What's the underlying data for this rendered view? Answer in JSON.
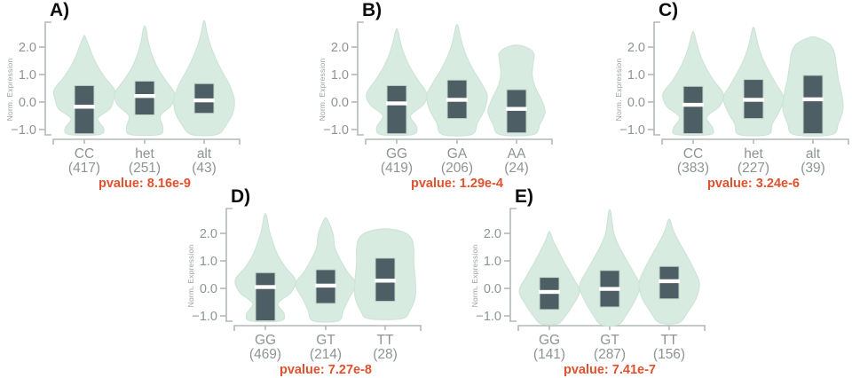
{
  "figure": {
    "background": "#ffffff",
    "y_axis": {
      "label": "Norm. Expression",
      "ticks": [
        "2.0",
        "1.0",
        "0.0",
        "−1.0"
      ],
      "tick_values": [
        2.0,
        1.0,
        0.0,
        -1.0
      ],
      "range": [
        -1.45,
        3.0
      ]
    },
    "colors": {
      "violin_fill": "#d8ebe1",
      "violin_edge": "#cbe2d7",
      "box_fill": "#4e5e65",
      "box_edge": "#c2d7cb",
      "median_line": "#ffffff",
      "axis": "#b3b9b6",
      "tick_text": "#8d9592",
      "axis_title_text": "#9aa29e",
      "pvalue_text": "#e2512d",
      "panel_label": "#0d0d0d"
    }
  },
  "chart_data": [
    {
      "type": "violin",
      "panel": "A)",
      "ylabel": "Norm. Expression",
      "categories": [
        "CC",
        "het",
        "alt"
      ],
      "counts": [
        417,
        251,
        43
      ],
      "pvalue": 8.16e-09,
      "pvalue_label": "pvalue: 8.16e-9",
      "legend": "none",
      "groups": [
        {
          "label": "CC",
          "count_label": "(417)",
          "box": {
            "q1": -1.15,
            "median": -0.17,
            "q3": 0.6
          },
          "density": [
            [
              -1.18,
              0.5
            ],
            [
              -0.95,
              0.64
            ],
            [
              -0.6,
              0.44
            ],
            [
              -0.25,
              0.85
            ],
            [
              0.1,
              0.97
            ],
            [
              0.45,
              1.0
            ],
            [
              0.9,
              0.68
            ],
            [
              1.35,
              0.42
            ],
            [
              1.75,
              0.25
            ],
            [
              2.1,
              0.13
            ],
            [
              2.3,
              0.06
            ]
          ]
        },
        {
          "label": "het",
          "count_label": "(251)",
          "box": {
            "q1": -0.47,
            "median": 0.22,
            "q3": 0.76
          },
          "density": [
            [
              -1.18,
              0.48
            ],
            [
              -0.9,
              0.6
            ],
            [
              -0.5,
              0.52
            ],
            [
              -0.1,
              0.9
            ],
            [
              0.3,
              1.0
            ],
            [
              0.75,
              0.72
            ],
            [
              1.2,
              0.45
            ],
            [
              1.7,
              0.25
            ],
            [
              2.2,
              0.12
            ],
            [
              2.65,
              0.05
            ]
          ]
        },
        {
          "label": "alt",
          "count_label": "(43)",
          "box": {
            "q1": -0.41,
            "median": 0.06,
            "q3": 0.67
          },
          "density": [
            [
              -1.18,
              0.42
            ],
            [
              -0.85,
              0.72
            ],
            [
              -0.4,
              0.95
            ],
            [
              0.1,
              1.0
            ],
            [
              0.6,
              0.85
            ],
            [
              1.1,
              0.6
            ],
            [
              1.6,
              0.38
            ],
            [
              2.1,
              0.2
            ],
            [
              2.6,
              0.08
            ],
            [
              2.85,
              0.04
            ]
          ]
        }
      ]
    },
    {
      "type": "violin",
      "panel": "B)",
      "ylabel": "Norm. Expression",
      "categories": [
        "GG",
        "GA",
        "AA"
      ],
      "counts": [
        419,
        206,
        24
      ],
      "pvalue": 0.000129,
      "pvalue_label": "pvalue: 1.29e-4",
      "legend": "none",
      "groups": [
        {
          "label": "GG",
          "count_label": "(419)",
          "box": {
            "q1": -1.15,
            "median": -0.05,
            "q3": 0.6
          },
          "density": [
            [
              -1.18,
              0.52
            ],
            [
              -0.9,
              0.66
            ],
            [
              -0.5,
              0.46
            ],
            [
              -0.1,
              0.88
            ],
            [
              0.3,
              1.0
            ],
            [
              0.8,
              0.7
            ],
            [
              1.25,
              0.45
            ],
            [
              1.7,
              0.26
            ],
            [
              2.15,
              0.13
            ],
            [
              2.55,
              0.05
            ]
          ]
        },
        {
          "label": "GA",
          "count_label": "(206)",
          "box": {
            "q1": -0.6,
            "median": 0.08,
            "q3": 0.8
          },
          "density": [
            [
              -1.18,
              0.48
            ],
            [
              -0.75,
              0.68
            ],
            [
              -0.25,
              0.92
            ],
            [
              0.25,
              1.0
            ],
            [
              0.7,
              0.8
            ],
            [
              1.2,
              0.52
            ],
            [
              1.7,
              0.3
            ],
            [
              2.2,
              0.15
            ],
            [
              2.7,
              0.05
            ]
          ]
        },
        {
          "label": "AA",
          "count_label": "(24)",
          "box": {
            "q1": -1.12,
            "median": -0.25,
            "q3": 0.45
          },
          "density": [
            [
              -1.18,
              0.55
            ],
            [
              -0.8,
              0.78
            ],
            [
              -0.35,
              0.95
            ],
            [
              0.1,
              0.82
            ],
            [
              0.55,
              0.62
            ],
            [
              1.0,
              0.52
            ],
            [
              1.45,
              0.56
            ],
            [
              1.75,
              0.58
            ],
            [
              1.95,
              0.4
            ]
          ]
        }
      ]
    },
    {
      "type": "violin",
      "panel": "C)",
      "ylabel": "Norm. Expression",
      "categories": [
        "CC",
        "het",
        "alt"
      ],
      "counts": [
        383,
        227,
        39
      ],
      "pvalue": 3.24e-06,
      "pvalue_label": "pvalue: 3.24e-6",
      "legend": "none",
      "groups": [
        {
          "label": "CC",
          "count_label": "(383)",
          "box": {
            "q1": -1.15,
            "median": -0.1,
            "q3": 0.57
          },
          "density": [
            [
              -1.18,
              0.55
            ],
            [
              -0.95,
              0.65
            ],
            [
              -0.55,
              0.45
            ],
            [
              -0.15,
              0.88
            ],
            [
              0.3,
              1.0
            ],
            [
              0.75,
              0.7
            ],
            [
              1.2,
              0.45
            ],
            [
              1.65,
              0.26
            ],
            [
              2.1,
              0.13
            ],
            [
              2.45,
              0.05
            ]
          ]
        },
        {
          "label": "het",
          "count_label": "(227)",
          "box": {
            "q1": -0.6,
            "median": 0.08,
            "q3": 0.82
          },
          "density": [
            [
              -1.18,
              0.48
            ],
            [
              -0.8,
              0.62
            ],
            [
              -0.35,
              0.85
            ],
            [
              0.15,
              1.0
            ],
            [
              0.6,
              0.78
            ],
            [
              1.1,
              0.52
            ],
            [
              1.6,
              0.3
            ],
            [
              2.1,
              0.15
            ],
            [
              2.6,
              0.05
            ]
          ]
        },
        {
          "label": "alt",
          "count_label": "(39)",
          "box": {
            "q1": -1.15,
            "median": 0.1,
            "q3": 0.97
          },
          "density": [
            [
              -1.18,
              0.62
            ],
            [
              -0.75,
              0.85
            ],
            [
              -0.25,
              1.0
            ],
            [
              0.3,
              0.95
            ],
            [
              0.8,
              0.85
            ],
            [
              1.3,
              0.78
            ],
            [
              1.75,
              0.72
            ],
            [
              2.05,
              0.6
            ],
            [
              2.25,
              0.35
            ]
          ]
        }
      ]
    },
    {
      "type": "violin",
      "panel": "D)",
      "ylabel": "Norm. Expression",
      "categories": [
        "GG",
        "GT",
        "TT"
      ],
      "counts": [
        469,
        214,
        28
      ],
      "pvalue": 7.27e-08,
      "pvalue_label": "pvalue: 7.27e-8",
      "legend": "none",
      "groups": [
        {
          "label": "GG",
          "count_label": "(469)",
          "box": {
            "q1": -1.18,
            "median": 0.05,
            "q3": 0.57
          },
          "density": [
            [
              -1.18,
              0.5
            ],
            [
              -0.92,
              0.62
            ],
            [
              -0.55,
              0.42
            ],
            [
              -0.15,
              0.85
            ],
            [
              0.3,
              1.0
            ],
            [
              0.75,
              0.68
            ],
            [
              1.2,
              0.42
            ],
            [
              1.7,
              0.24
            ],
            [
              2.15,
              0.12
            ],
            [
              2.6,
              0.05
            ]
          ]
        },
        {
          "label": "GT",
          "count_label": "(214)",
          "box": {
            "q1": -0.55,
            "median": 0.1,
            "q3": 0.68
          },
          "density": [
            [
              -1.18,
              0.42
            ],
            [
              -0.8,
              0.58
            ],
            [
              -0.35,
              0.78
            ],
            [
              0.15,
              1.0
            ],
            [
              0.6,
              0.72
            ],
            [
              1.05,
              0.48
            ],
            [
              1.5,
              0.3
            ],
            [
              1.9,
              0.26
            ],
            [
              2.2,
              0.18
            ],
            [
              2.45,
              0.08
            ]
          ]
        },
        {
          "label": "TT",
          "count_label": "(28)",
          "box": {
            "q1": -0.47,
            "median": 0.28,
            "q3": 1.1
          },
          "density": [
            [
              -1.1,
              0.55
            ],
            [
              -0.8,
              0.82
            ],
            [
              -0.3,
              1.0
            ],
            [
              0.3,
              1.0
            ],
            [
              0.9,
              0.95
            ],
            [
              1.4,
              0.95
            ],
            [
              1.8,
              0.88
            ],
            [
              2.05,
              0.6
            ]
          ]
        }
      ]
    },
    {
      "type": "violin",
      "panel": "E)",
      "ylabel": "Norm. Expression",
      "categories": [
        "GG",
        "GT",
        "TT"
      ],
      "counts": [
        141,
        287,
        156
      ],
      "pvalue": 7.41e-07,
      "pvalue_label": "pvalue: 7.41e-7",
      "legend": "none",
      "groups": [
        {
          "label": "GG",
          "count_label": "(141)",
          "box": {
            "q1": -0.77,
            "median": -0.13,
            "q3": 0.4
          },
          "density": [
            [
              -1.3,
              0.25
            ],
            [
              -1.05,
              0.5
            ],
            [
              -0.6,
              0.78
            ],
            [
              -0.1,
              1.0
            ],
            [
              0.4,
              0.78
            ],
            [
              0.9,
              0.52
            ],
            [
              1.4,
              0.28
            ],
            [
              1.75,
              0.12
            ],
            [
              1.95,
              0.06
            ]
          ]
        },
        {
          "label": "GT",
          "count_label": "(287)",
          "box": {
            "q1": -0.68,
            "median": -0.02,
            "q3": 0.65
          },
          "density": [
            [
              -1.32,
              0.28
            ],
            [
              -0.95,
              0.56
            ],
            [
              -0.4,
              0.85
            ],
            [
              0.1,
              1.0
            ],
            [
              0.6,
              0.78
            ],
            [
              1.1,
              0.52
            ],
            [
              1.6,
              0.28
            ],
            [
              2.0,
              0.14
            ],
            [
              2.4,
              0.08
            ],
            [
              2.75,
              0.04
            ]
          ]
        },
        {
          "label": "TT",
          "count_label": "(156)",
          "box": {
            "q1": -0.38,
            "median": 0.26,
            "q3": 0.8
          },
          "density": [
            [
              -1.25,
              0.32
            ],
            [
              -0.85,
              0.62
            ],
            [
              -0.35,
              0.9
            ],
            [
              0.2,
              1.0
            ],
            [
              0.7,
              0.82
            ],
            [
              1.2,
              0.58
            ],
            [
              1.7,
              0.32
            ],
            [
              2.1,
              0.14
            ],
            [
              2.4,
              0.06
            ]
          ]
        }
      ]
    }
  ]
}
